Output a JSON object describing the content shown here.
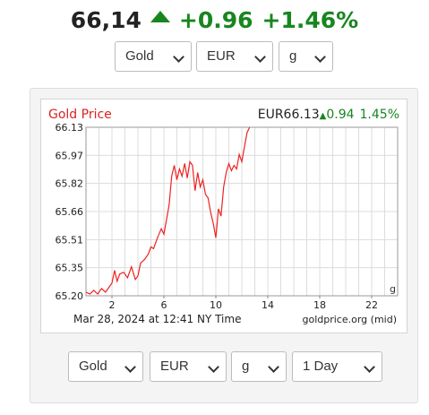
{
  "header": {
    "price": "66,14",
    "change": "+0.96",
    "change_pct": "+1.46%",
    "direction_icon": "up-triangle-icon",
    "up_color": "#18861f"
  },
  "top_selectors": {
    "metal": "Gold",
    "currency": "EUR",
    "unit": "g"
  },
  "chart_header": {
    "title": "Gold Price",
    "quote": "EUR66.13",
    "change": "0.94",
    "change_pct": "1.45%"
  },
  "chart_footer": {
    "timestamp": "Mar 28, 2024 at 12:41 NY Time",
    "source": "goldprice.org (mid)",
    "unit_label": "g"
  },
  "chart_data": {
    "type": "line",
    "title": "Gold Price",
    "line_color": "#ee2222",
    "y_ticks": [
      "66.13",
      "65.97",
      "65.82",
      "65.66",
      "65.51",
      "65.35",
      "65.20"
    ],
    "ylim": [
      65.2,
      66.13
    ],
    "x_ticks": [
      "2",
      "6",
      "10",
      "14",
      "18",
      "22"
    ],
    "xlim": [
      0,
      24
    ],
    "grid": true,
    "series": [
      {
        "x": [
          0,
          0.3,
          0.6,
          0.9,
          1.2,
          1.5,
          1.8,
          2.0,
          2.2,
          2.4,
          2.6,
          2.9,
          3.2,
          3.5,
          3.8,
          4.0,
          4.2,
          4.5,
          4.8,
          5.0,
          5.2,
          5.5,
          5.8,
          6.0,
          6.2,
          6.4,
          6.6,
          6.8,
          7.0,
          7.2,
          7.4,
          7.6,
          7.8,
          8.0,
          8.2,
          8.4,
          8.6,
          8.8,
          9.0,
          9.2,
          9.4,
          9.6,
          9.8,
          10.0,
          10.2,
          10.4,
          10.6,
          10.8,
          11.0,
          11.2,
          11.4,
          11.6,
          11.8,
          12.0,
          12.2,
          12.4,
          12.6
        ],
        "y": [
          65.22,
          65.21,
          65.23,
          65.21,
          65.24,
          65.22,
          65.25,
          65.27,
          65.34,
          65.28,
          65.32,
          65.33,
          65.3,
          65.36,
          65.29,
          65.31,
          65.38,
          65.4,
          65.43,
          65.47,
          65.46,
          65.52,
          65.57,
          65.54,
          65.62,
          65.7,
          65.86,
          65.92,
          65.84,
          65.9,
          65.86,
          65.93,
          65.85,
          65.94,
          65.92,
          65.78,
          65.88,
          65.8,
          65.84,
          65.76,
          65.74,
          65.66,
          65.6,
          65.52,
          65.68,
          65.64,
          65.8,
          65.88,
          65.93,
          65.89,
          65.92,
          65.9,
          65.98,
          65.94,
          66.02,
          66.1,
          66.13
        ]
      }
    ]
  },
  "bottom_selectors": {
    "metal": "Gold",
    "currency": "EUR",
    "unit": "g",
    "range": "1 Day"
  }
}
